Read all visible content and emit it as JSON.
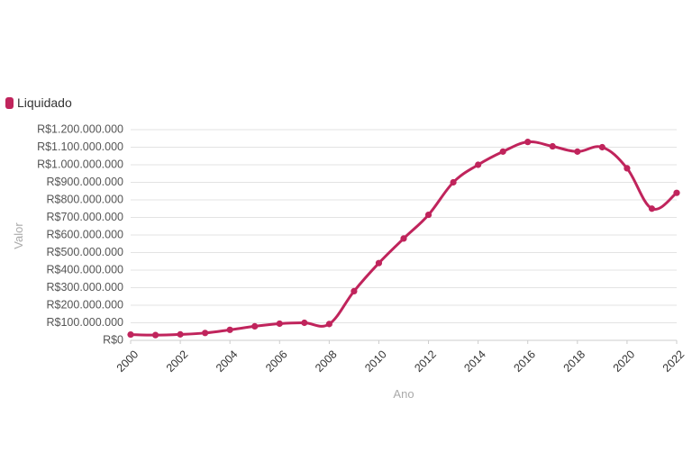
{
  "chart_data": {
    "type": "line",
    "title": "",
    "xlabel": "Ano",
    "ylabel": "Valor",
    "legend_position": "top-left",
    "grid": true,
    "x": [
      2000,
      2001,
      2002,
      2003,
      2004,
      2005,
      2006,
      2007,
      2008,
      2009,
      2010,
      2011,
      2012,
      2013,
      2014,
      2015,
      2016,
      2017,
      2018,
      2019,
      2020,
      2021,
      2022
    ],
    "x_tick_labels": [
      "2000",
      "2002",
      "2004",
      "2006",
      "2008",
      "2010",
      "2012",
      "2014",
      "2016",
      "2018",
      "2020",
      "2022"
    ],
    "y_tick_labels": [
      "R$0",
      "R$100.000.000",
      "R$200.000.000",
      "R$300.000.000",
      "R$400.000.000",
      "R$500.000.000",
      "R$600.000.000",
      "R$700.000.000",
      "R$800.000.000",
      "R$900.000.000",
      "R$1.000.000.000",
      "R$1.100.000.000",
      "R$1.200.000.000"
    ],
    "ylim": [
      0,
      1200000000
    ],
    "xlim": [
      2000,
      2022
    ],
    "series": [
      {
        "name": "Liquidado",
        "color": "#c0245c",
        "values": [
          33000000,
          30000000,
          34000000,
          42000000,
          60000000,
          80000000,
          95000000,
          100000000,
          93000000,
          280000000,
          440000000,
          580000000,
          715000000,
          900000000,
          1000000000,
          1075000000,
          1130000000,
          1105000000,
          1075000000,
          1100000000,
          980000000,
          750000000,
          840000000
        ]
      }
    ]
  }
}
